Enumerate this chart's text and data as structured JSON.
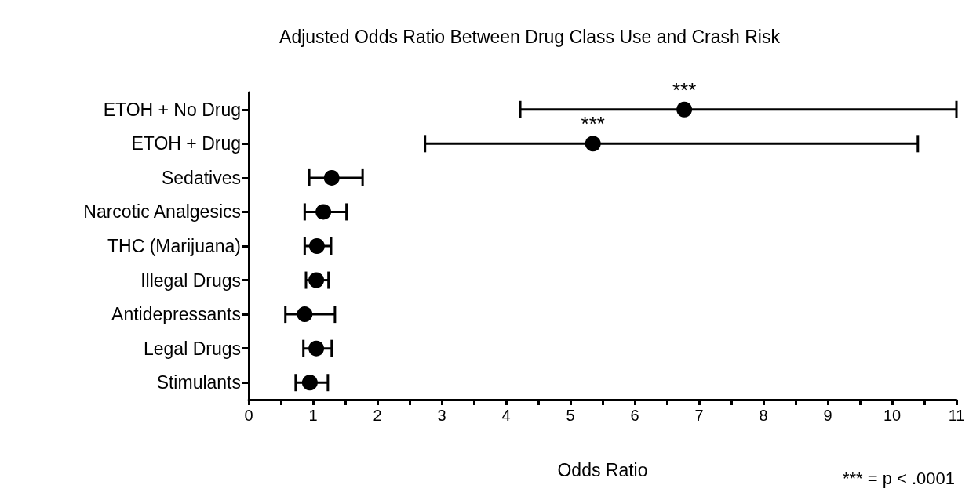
{
  "chart_data": {
    "type": "scatter",
    "orientation": "horizontal",
    "title": "Adjusted Odds Ratio Between Drug Class Use and Crash Risk",
    "xlabel": "Odds Ratio",
    "categories": [
      "ETOH + No Drug",
      "ETOH + Drug",
      "Sedatives",
      "Narcotic Analgesics",
      "THC (Marijuana)",
      "Illegal Drugs",
      "Antidepressants",
      "Legal Drugs",
      "Stimulants"
    ],
    "values": [
      6.77,
      5.35,
      1.29,
      1.16,
      1.06,
      1.05,
      0.87,
      1.05,
      0.95
    ],
    "errors": [
      [
        4.22,
        11.0
      ],
      [
        2.74,
        10.4
      ],
      [
        0.94,
        1.77
      ],
      [
        0.87,
        1.52
      ],
      [
        0.87,
        1.28
      ],
      [
        0.89,
        1.24
      ],
      [
        0.57,
        1.34
      ],
      [
        0.85,
        1.29
      ],
      [
        0.73,
        1.23
      ]
    ],
    "color": "#000000",
    "marker": "circle",
    "xlim": [
      0,
      11
    ],
    "xticks": [
      0,
      {
        "value": 0.5,
        "label": null
      },
      1,
      {
        "value": 1.5,
        "label": null
      },
      2,
      {
        "value": 2.5,
        "label": null
      },
      3,
      {
        "value": 3.5,
        "label": null
      },
      4,
      {
        "value": 4.5,
        "label": null
      },
      5,
      {
        "value": 5.5,
        "label": null
      },
      6,
      {
        "value": 6.5,
        "label": null
      },
      7,
      {
        "value": 7.5,
        "label": null
      },
      8,
      {
        "value": 8.5,
        "label": null
      },
      9,
      {
        "value": 9.5,
        "label": null
      },
      10,
      {
        "value": 10.5,
        "label": null
      },
      11
    ],
    "grid": false,
    "annotations": [
      {
        "text": "***",
        "x": 6.77,
        "y": "ETOH + No Drug"
      },
      {
        "text": "***",
        "x": 5.35,
        "y": "ETOH + Drug"
      },
      "*** = p < .0001"
    ]
  }
}
